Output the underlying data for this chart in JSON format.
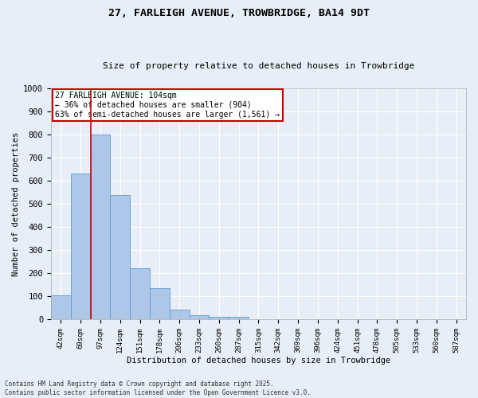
{
  "title_line1": "27, FARLEIGH AVENUE, TROWBRIDGE, BA14 9DT",
  "title_line2": "Size of property relative to detached houses in Trowbridge",
  "xlabel": "Distribution of detached houses by size in Trowbridge",
  "ylabel": "Number of detached properties",
  "categories": [
    "42sqm",
    "69sqm",
    "97sqm",
    "124sqm",
    "151sqm",
    "178sqm",
    "206sqm",
    "233sqm",
    "260sqm",
    "287sqm",
    "315sqm",
    "342sqm",
    "369sqm",
    "396sqm",
    "424sqm",
    "451sqm",
    "478sqm",
    "505sqm",
    "533sqm",
    "560sqm",
    "587sqm"
  ],
  "values": [
    105,
    630,
    800,
    540,
    220,
    135,
    43,
    18,
    12,
    10,
    0,
    0,
    0,
    0,
    0,
    0,
    0,
    0,
    0,
    0,
    0
  ],
  "bar_color": "#aec6e8",
  "bar_edge_color": "#5b9bd5",
  "background_color": "#e8eef7",
  "grid_color": "#ffffff",
  "vline_x_index": 2,
  "vline_color": "#cc0000",
  "annotation_text": "27 FARLEIGH AVENUE: 104sqm\n← 36% of detached houses are smaller (904)\n63% of semi-detached houses are larger (1,561) →",
  "annotation_box_color": "#cc0000",
  "annotation_bg": "#ffffff",
  "ylim": [
    0,
    1000
  ],
  "yticks": [
    0,
    100,
    200,
    300,
    400,
    500,
    600,
    700,
    800,
    900,
    1000
  ],
  "footnote": "Contains HM Land Registry data © Crown copyright and database right 2025.\nContains public sector information licensed under the Open Government Licence v3.0."
}
